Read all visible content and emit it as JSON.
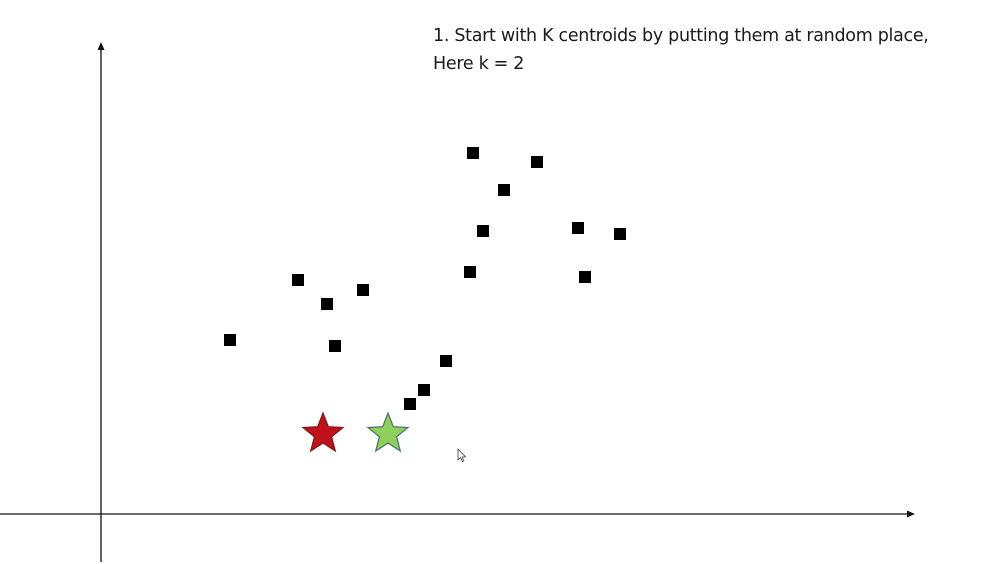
{
  "caption": {
    "line1": "1. Start with K centroids by putting them at random place,",
    "line2": "Here k = 2"
  },
  "colors": {
    "axis": "#111111",
    "point": "#000000",
    "centroid_1_fill": "#c0101a",
    "centroid_1_stroke": "#7a1a1a",
    "centroid_2_fill": "#8ed05a",
    "centroid_2_stroke": "#4a6e72"
  },
  "icons": {
    "cursor": "mouse-pointer-icon"
  }
}
